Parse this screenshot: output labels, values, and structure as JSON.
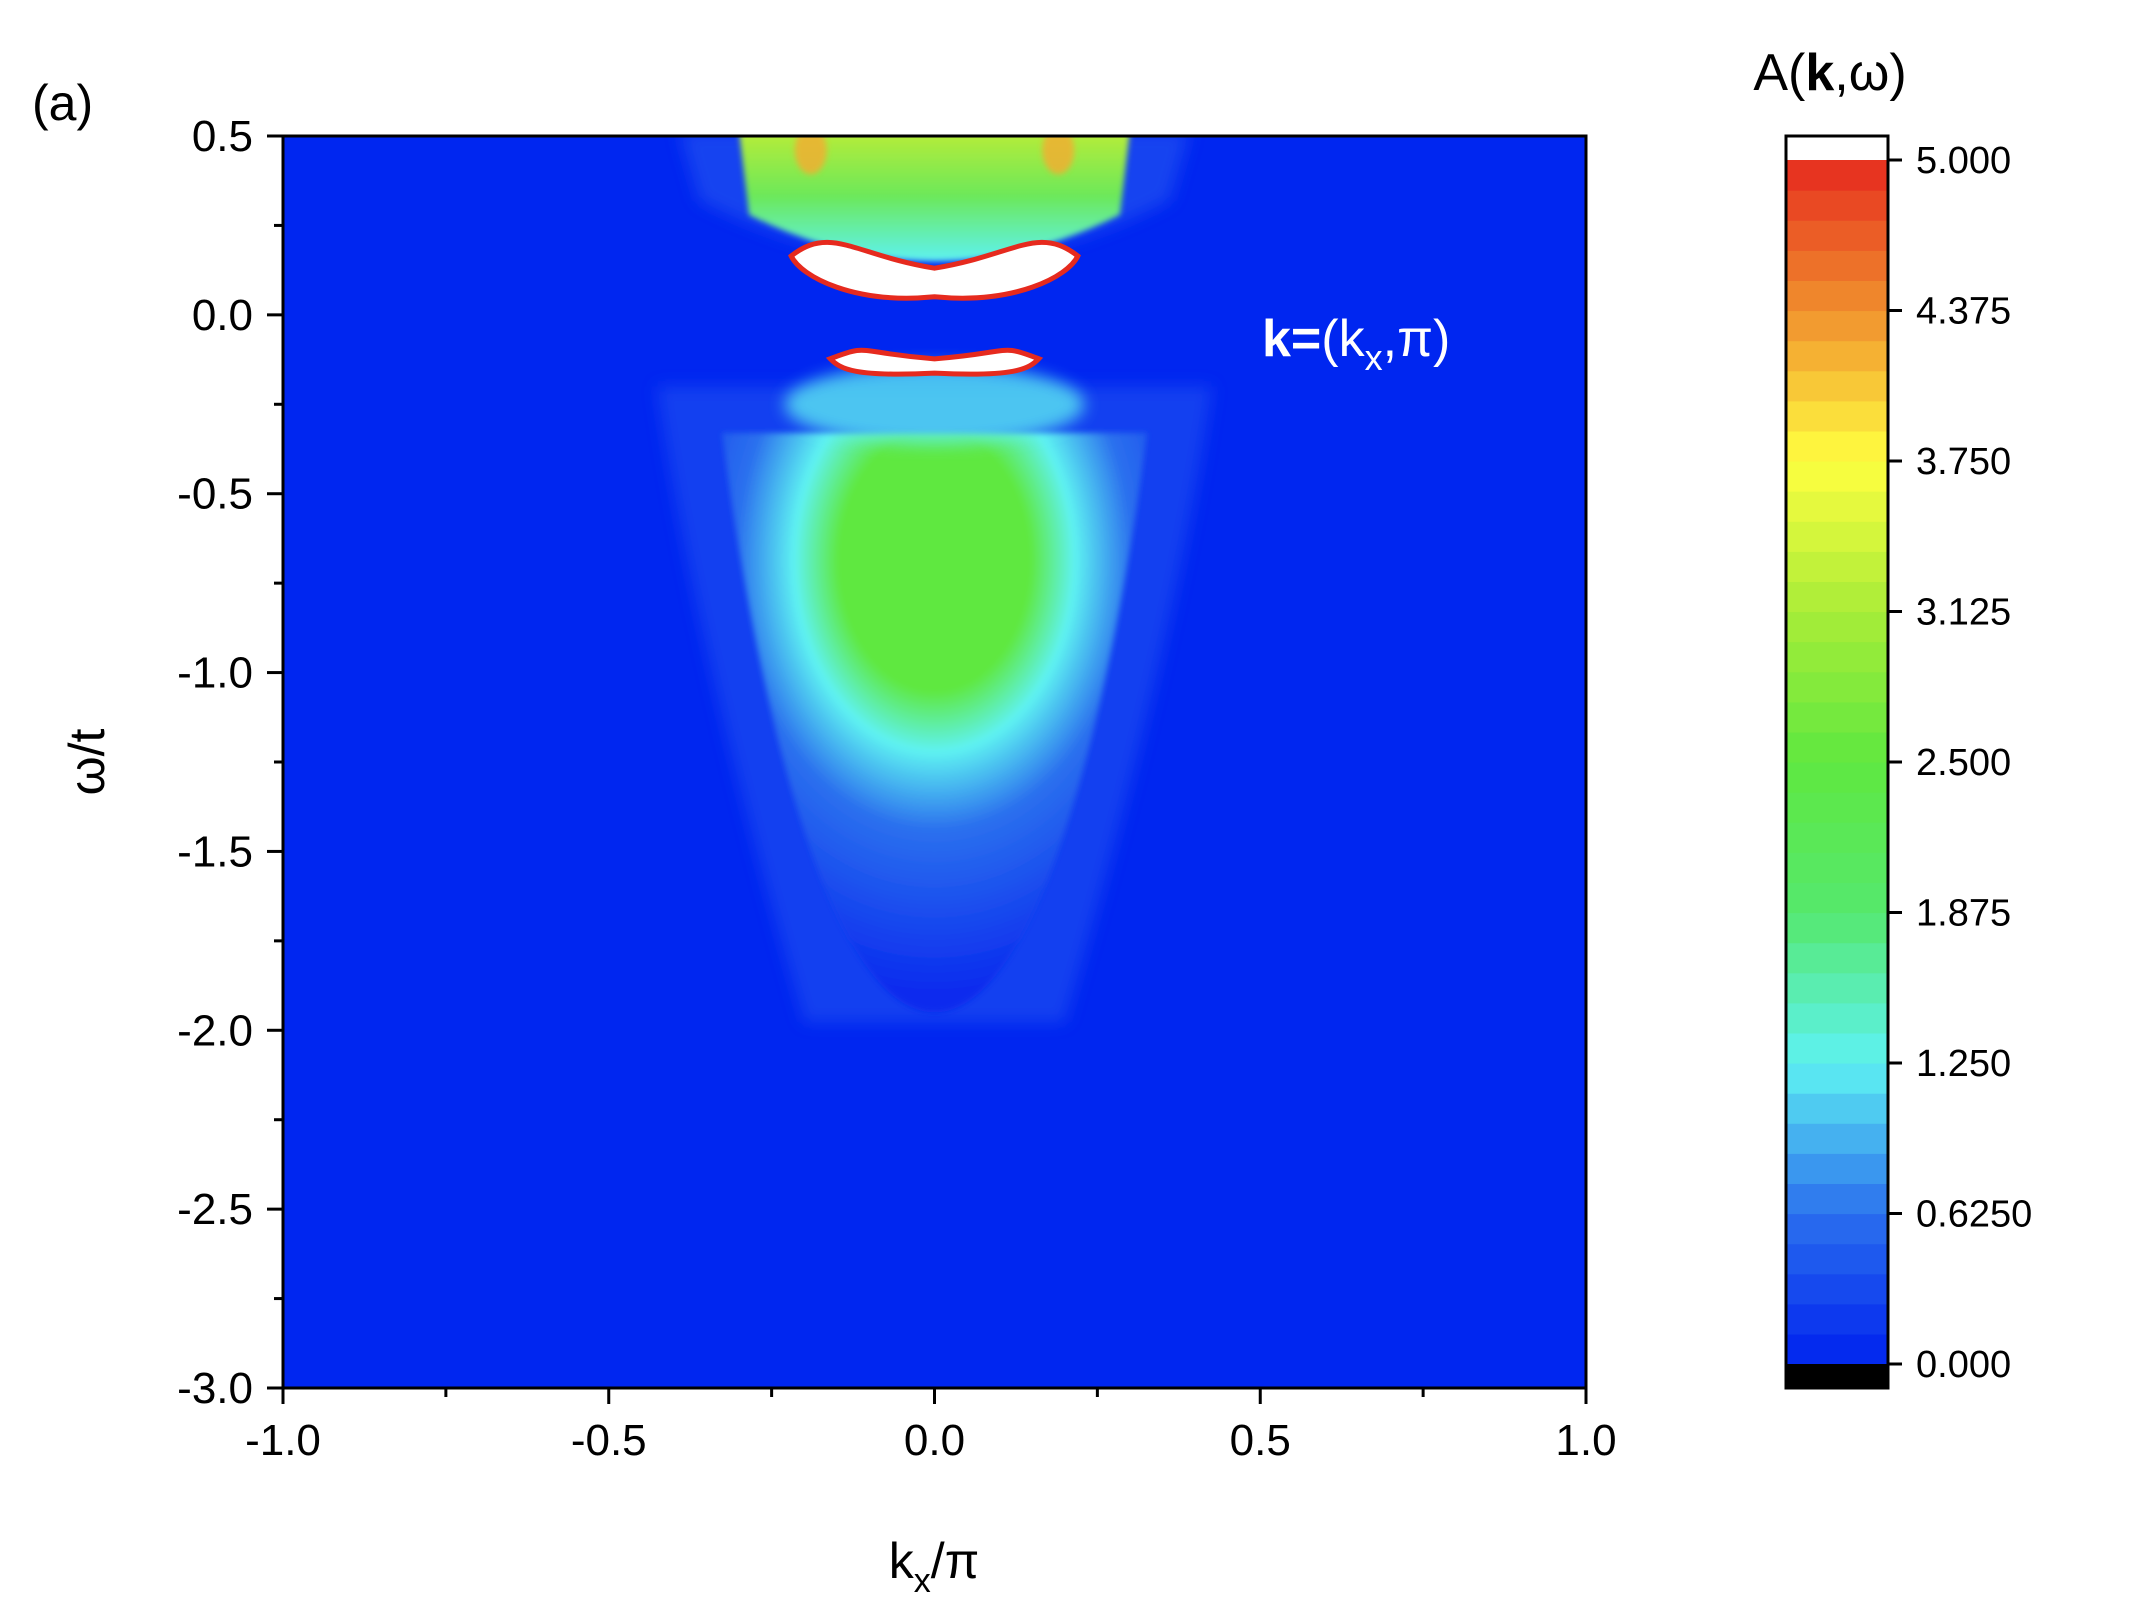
{
  "panel_label": "(a)",
  "chart_data": {
    "type": "heatmap",
    "title": "",
    "xlabel": {
      "main": "k",
      "sub": "x",
      "rest": "/π"
    },
    "ylabel": "ω/t",
    "xlim": [
      -1.0,
      1.0
    ],
    "ylim": [
      -3.0,
      0.5
    ],
    "x_ticks": [
      "-1.0",
      "-0.5",
      "0.0",
      "0.5",
      "1.0"
    ],
    "y_ticks": [
      "0.5",
      "0.0",
      "-0.5",
      "-1.0",
      "-1.5",
      "-2.0",
      "-2.5",
      "-3.0"
    ],
    "x_tick_values": [
      -1.0,
      -0.5,
      0.0,
      0.5,
      1.0
    ],
    "y_tick_values": [
      0.5,
      0.0,
      -0.5,
      -1.0,
      -1.5,
      -2.0,
      -2.5,
      -3.0
    ],
    "annotation": {
      "bold": "k=",
      "open": "(k",
      "sub": "x",
      "close": ",π)"
    },
    "colorbar": {
      "title": {
        "open": "A(",
        "bold": "k",
        "close": ",ω)"
      },
      "range": [
        0.0,
        5.0
      ],
      "tick_values": [
        5.0,
        4.375,
        3.75,
        3.125,
        2.5,
        1.875,
        1.25,
        0.625,
        0.0
      ],
      "tick_labels": [
        "5.000",
        "4.375",
        "3.750",
        "3.125",
        "2.500",
        "1.875",
        "1.250",
        "0.6250",
        "0.000"
      ],
      "color_stops": [
        {
          "v": 0.0,
          "color": "#0022ee"
        },
        {
          "v": 0.625,
          "color": "#2b70ee"
        },
        {
          "v": 1.25,
          "color": "#5ef2f2"
        },
        {
          "v": 1.875,
          "color": "#55e86e"
        },
        {
          "v": 2.5,
          "color": "#5fe840"
        },
        {
          "v": 3.125,
          "color": "#a8ec38"
        },
        {
          "v": 3.75,
          "color": "#ffff40"
        },
        {
          "v": 4.375,
          "color": "#f0902e"
        },
        {
          "v": 5.0,
          "color": "#e62a1e"
        }
      ],
      "over_color": "#ffffff",
      "under_color": "#000000"
    },
    "features": [
      {
        "name": "lower-band",
        "kx_center": 0.0,
        "omega_top": -0.33,
        "omega_bottom": -1.95,
        "kx_halfwidth_top": 0.28,
        "peak_value": 2.7
      },
      {
        "name": "upper-band",
        "omega_range": [
          0.25,
          0.5
        ],
        "kx_halfwidth": 0.3,
        "peak_value": 3.5
      },
      {
        "name": "upper-peak-ridge",
        "kx_range": [
          -0.22,
          0.22
        ],
        "omega_center": 0.15,
        "value_above": 5.0
      },
      {
        "name": "lower-peak-ridge",
        "kx_range": [
          -0.16,
          0.16
        ],
        "omega_center": -0.13,
        "value_above": 5.0
      }
    ]
  }
}
